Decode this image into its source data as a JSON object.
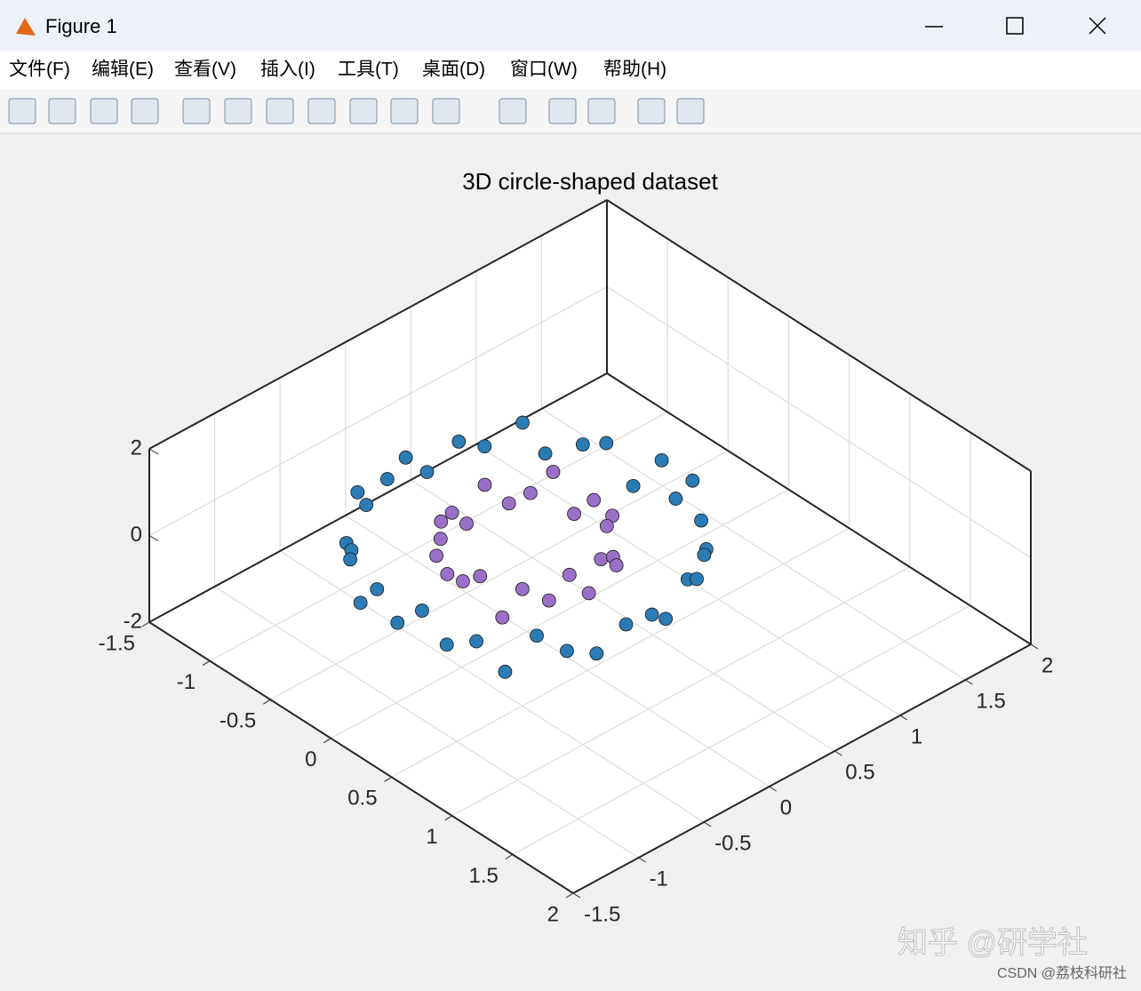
{
  "window": {
    "title": "Figure 1",
    "menu": [
      "文件(F)",
      "编辑(E)",
      "查看(V)",
      "插入(I)",
      "工具(T)",
      "桌面(D)",
      "窗口(W)",
      "帮助(H)"
    ]
  },
  "chart_data": {
    "type": "scatter3d",
    "title": "3D circle-shaped dataset",
    "xlim": [
      -1.5,
      2
    ],
    "ylim": [
      -1.5,
      2
    ],
    "zlim": [
      -2,
      2
    ],
    "xticks": [
      -1.5,
      -1,
      -0.5,
      0,
      0.5,
      1,
      1.5,
      2
    ],
    "yticks": [
      -1.5,
      -1,
      -0.5,
      0,
      0.5,
      1,
      1.5,
      2
    ],
    "zticks": [
      -2,
      0,
      2
    ],
    "grid": true,
    "series": [
      {
        "color": "#2b7bb5",
        "x": [
          1.02,
          0.95,
          0.97,
          0.85,
          0.8,
          0.62,
          0.52,
          0.33,
          0.18,
          0.01,
          -0.16,
          -0.35,
          -0.49,
          -0.66,
          -0.75,
          -0.88,
          -0.92,
          -1.01,
          -0.98,
          -0.96,
          -0.95,
          -0.86,
          -0.79,
          -0.63,
          -0.51,
          -0.35,
          -0.17,
          0.02,
          0.18,
          0.33,
          0.51,
          0.65,
          0.76,
          0.89,
          0.93,
          0.99
        ],
        "y": [
          0.01,
          0.18,
          0.33,
          0.51,
          0.63,
          0.78,
          0.85,
          0.96,
          0.97,
          1.02,
          0.96,
          0.93,
          0.88,
          0.75,
          0.66,
          0.49,
          0.33,
          0.17,
          -0.02,
          -0.18,
          -0.35,
          -0.5,
          -0.65,
          -0.76,
          -0.88,
          -0.95,
          -0.99,
          -1.01,
          -0.97,
          -0.92,
          -0.86,
          -0.77,
          -0.63,
          -0.52,
          -0.33,
          -0.16
        ],
        "z": [
          0.2,
          -0.3,
          0.4,
          -0.1,
          0.3,
          -0.4,
          0.1,
          0.5,
          -0.2,
          0.3,
          -0.5,
          0.2,
          0.0,
          -0.3,
          0.4,
          -0.1,
          0.2,
          -0.4,
          0.3,
          0.1,
          -0.2,
          0.5,
          -0.3,
          0.0,
          0.2,
          -0.4,
          0.3,
          -0.1,
          0.4,
          -0.2,
          0.1,
          -0.5,
          0.3,
          0.0,
          -0.3,
          0.2
        ]
      },
      {
        "color": "#9a6fc7",
        "x": [
          0.51,
          0.47,
          0.44,
          0.36,
          0.24,
          0.14,
          0.0,
          -0.13,
          -0.26,
          -0.35,
          -0.42,
          -0.49,
          -0.5,
          -0.48,
          -0.43,
          -0.36,
          -0.25,
          -0.13,
          0.01,
          0.13,
          0.26,
          0.35,
          0.44,
          0.49
        ],
        "y": [
          0.0,
          0.13,
          0.25,
          0.35,
          0.43,
          0.48,
          0.51,
          0.48,
          0.44,
          0.35,
          0.25,
          0.13,
          0.0,
          -0.13,
          -0.26,
          -0.36,
          -0.43,
          -0.49,
          -0.5,
          -0.48,
          -0.43,
          -0.36,
          -0.24,
          -0.13
        ],
        "z": [
          -0.2,
          0.3,
          0.1,
          -0.4,
          0.4,
          -0.1,
          0.2,
          -0.3,
          0.5,
          0.0,
          -0.2,
          0.3,
          -0.4,
          0.1,
          0.2,
          -0.3,
          0.4,
          -0.1,
          0.0,
          0.3,
          -0.5,
          0.2,
          -0.1,
          0.4
        ]
      }
    ]
  },
  "watermark": [
    "知乎 @研学社",
    "CSDN @荔枝科研社"
  ]
}
